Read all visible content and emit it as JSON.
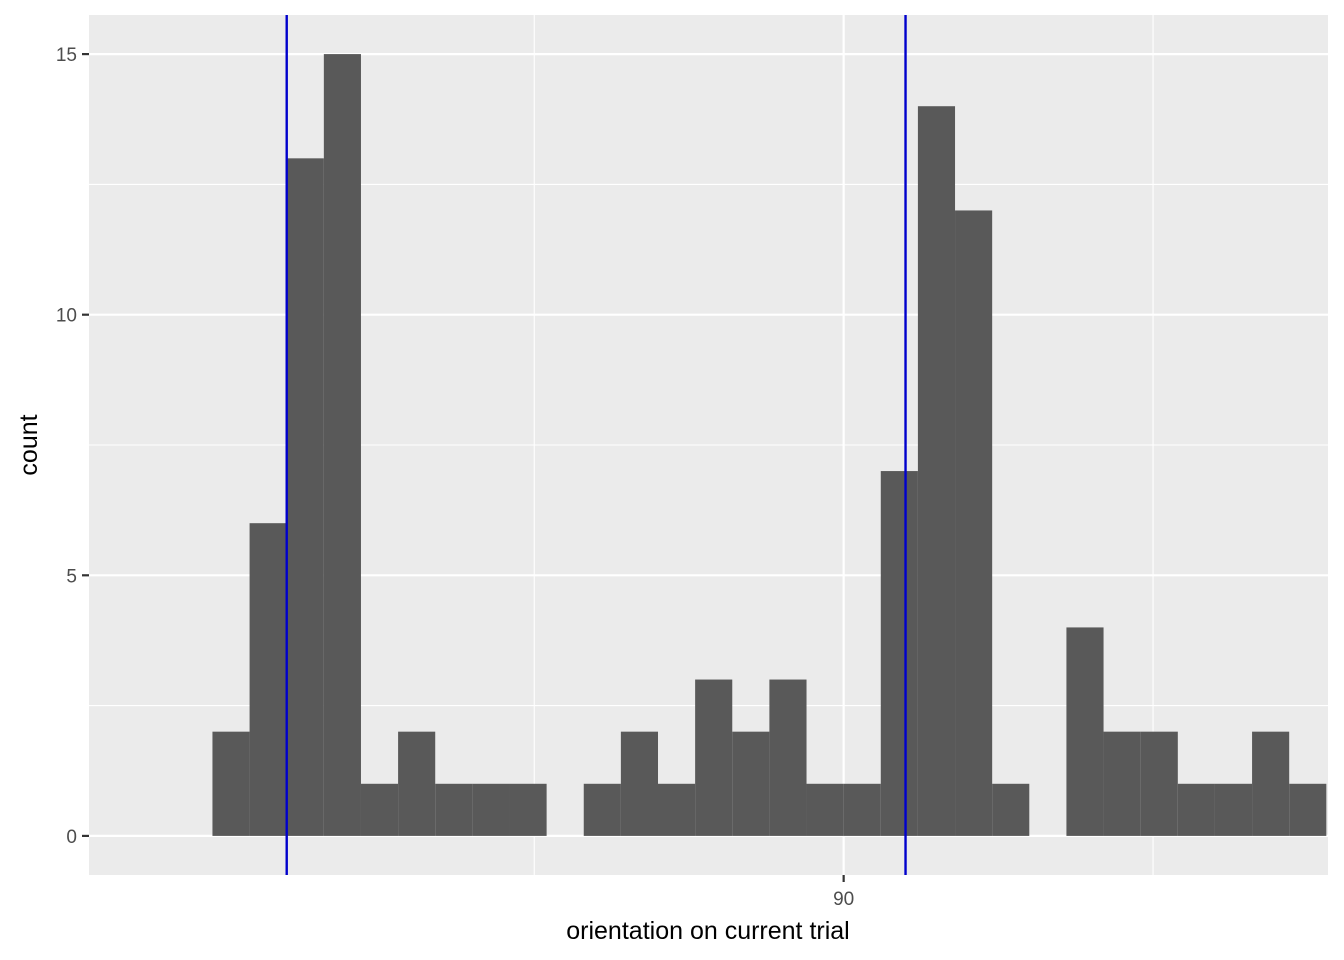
{
  "chart_data": {
    "type": "bar",
    "title": "",
    "xlabel": "orientation on current trial",
    "ylabel": "count",
    "x_ticks": [
      90
    ],
    "x_tick_labels": [
      "90"
    ],
    "xlim": [
      -31.95,
      168.27
    ],
    "y_ticks": [
      0,
      5,
      10,
      15
    ],
    "y_tick_labels": [
      "0",
      "5",
      "10",
      "15"
    ],
    "ylim": [
      -0.75,
      15.75
    ],
    "grid": true,
    "bin_width": 6,
    "bins": [
      {
        "center": -9,
        "count": 2
      },
      {
        "center": -3,
        "count": 6
      },
      {
        "center": 3,
        "count": 13
      },
      {
        "center": 9,
        "count": 15
      },
      {
        "center": 15,
        "count": 1
      },
      {
        "center": 21,
        "count": 2
      },
      {
        "center": 27,
        "count": 1
      },
      {
        "center": 33,
        "count": 1
      },
      {
        "center": 39,
        "count": 1
      },
      {
        "center": 45,
        "count": 0
      },
      {
        "center": 51,
        "count": 1
      },
      {
        "center": 57,
        "count": 2
      },
      {
        "center": 63,
        "count": 1
      },
      {
        "center": 69,
        "count": 3
      },
      {
        "center": 75,
        "count": 2
      },
      {
        "center": 81,
        "count": 3
      },
      {
        "center": 87,
        "count": 1
      },
      {
        "center": 93,
        "count": 1
      },
      {
        "center": 99,
        "count": 7
      },
      {
        "center": 105,
        "count": 14
      },
      {
        "center": 111,
        "count": 12
      },
      {
        "center": 117,
        "count": 1
      },
      {
        "center": 123,
        "count": 0
      },
      {
        "center": 129,
        "count": 4
      },
      {
        "center": 135,
        "count": 2
      },
      {
        "center": 141,
        "count": 2
      },
      {
        "center": 147,
        "count": 1
      },
      {
        "center": 153,
        "count": 1
      },
      {
        "center": 159,
        "count": 2
      },
      {
        "center": 165,
        "count": 1
      }
    ],
    "vlines": [
      0,
      100
    ],
    "colors": {
      "panel": "#EBEBEB",
      "grid": "#FFFFFF",
      "bar": "#595959",
      "vline": "#0000CC",
      "tick": "#333333"
    }
  }
}
